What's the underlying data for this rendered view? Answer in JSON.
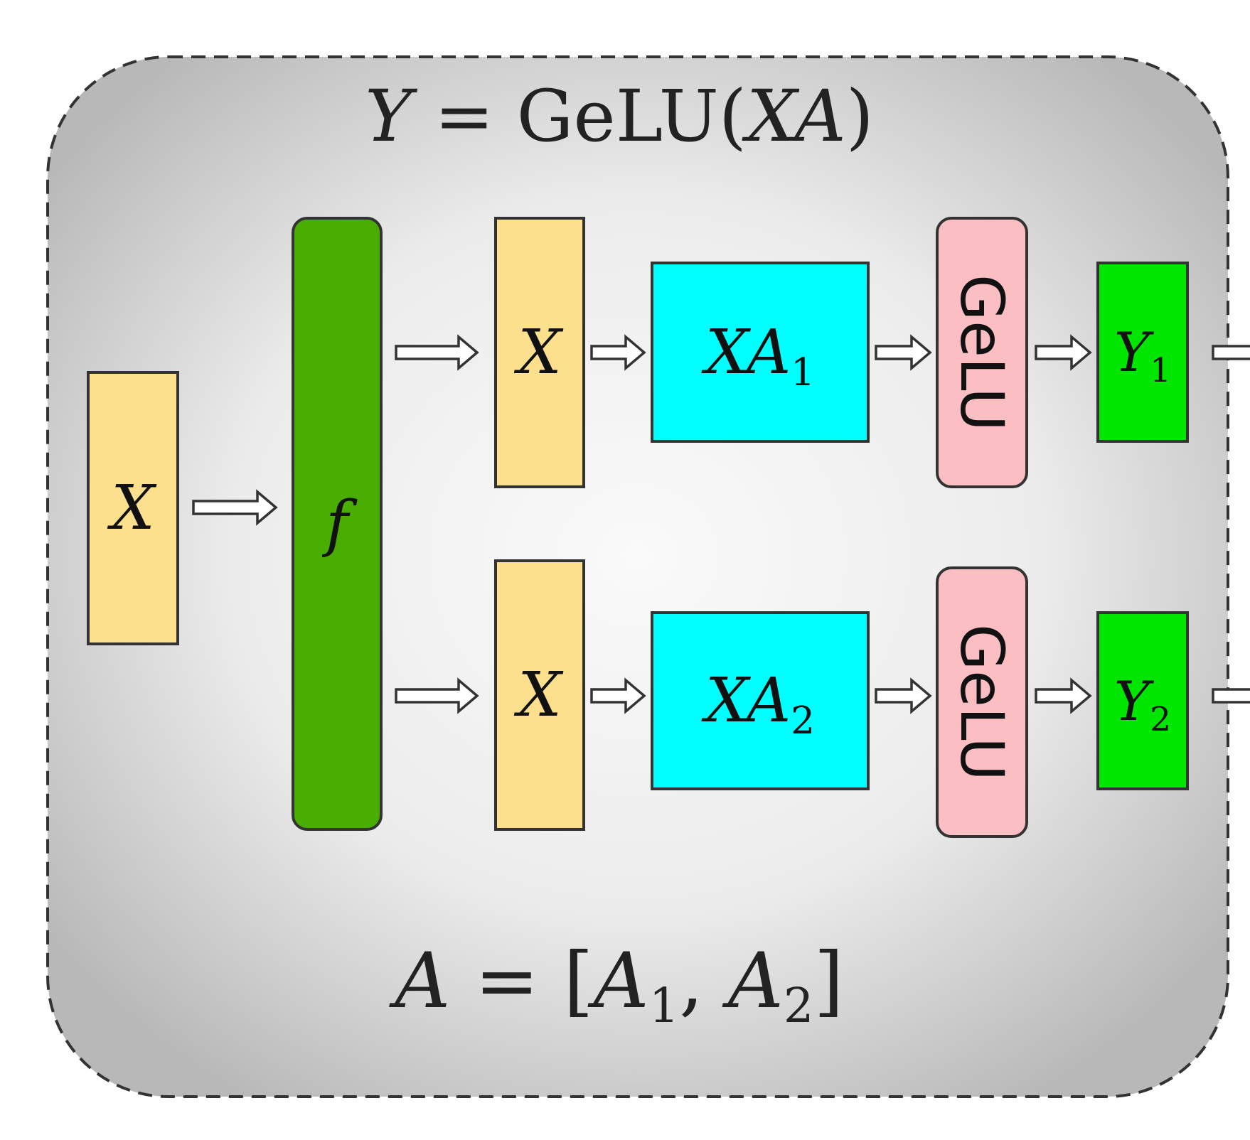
{
  "colors": {
    "input": "#FCE08D",
    "split": "#4AAE02",
    "matmul": "#00FFFF",
    "activation": "#FBBEC2",
    "output": "#00E600",
    "outline": "#333333",
    "panel_center": "#FAFAFA",
    "panel_edge": "#BDBDBD"
  },
  "top_equation": {
    "lhs": "Y",
    "op": "=",
    "fn": "GeLU",
    "arg": "XA"
  },
  "bottom_equation": {
    "lhs": "A",
    "op": "=",
    "a1": "A",
    "a1_sub": "1",
    "a2": "A",
    "a2_sub": "2"
  },
  "nodes": {
    "input_x": "X",
    "split_f": "f",
    "branch1": {
      "x": "X",
      "matmul": "XA",
      "matmul_sub": "1",
      "activation": "GeLU",
      "output": "Y",
      "output_sub": "1"
    },
    "branch2": {
      "x": "X",
      "matmul": "XA",
      "matmul_sub": "2",
      "activation": "GeLU",
      "output": "Y",
      "output_sub": "2"
    }
  }
}
